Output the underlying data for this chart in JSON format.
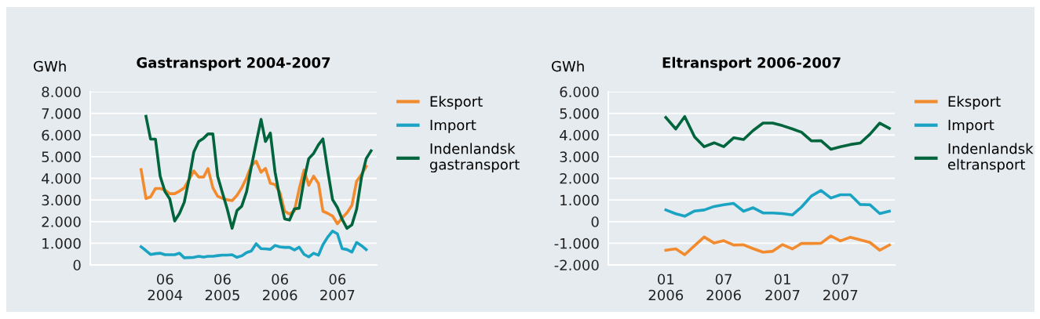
{
  "chart_data": [
    {
      "type": "line",
      "title": "Gastransport 2004-2007",
      "ylabel": "GWh",
      "series": [
        {
          "name": "Eksport",
          "color": "#f28a2e",
          "x": [
            "2004-01",
            "2004-02",
            "2004-03",
            "2004-04",
            "2004-05",
            "2004-06",
            "2004-07",
            "2004-08",
            "2004-09",
            "2004-10",
            "2004-11",
            "2004-12",
            "2005-01",
            "2005-02",
            "2005-03",
            "2005-04",
            "2005-05",
            "2005-06",
            "2005-07",
            "2005-08",
            "2005-09",
            "2005-10",
            "2005-11",
            "2005-12",
            "2006-01",
            "2006-02",
            "2006-03",
            "2006-04",
            "2006-05",
            "2006-06",
            "2006-07",
            "2006-08",
            "2006-09",
            "2006-10",
            "2006-11",
            "2006-12",
            "2007-01",
            "2007-02",
            "2007-03",
            "2007-04",
            "2007-05",
            "2007-06",
            "2007-07",
            "2007-08",
            "2007-09",
            "2007-10",
            "2007-11",
            "2007-12"
          ],
          "values": [
            4400,
            3070,
            3140,
            3530,
            3530,
            3460,
            3290,
            3290,
            3410,
            3560,
            3950,
            4340,
            4060,
            4060,
            4450,
            3560,
            3170,
            3070,
            3010,
            2970,
            3210,
            3560,
            4020,
            4580,
            4790,
            4280,
            4460,
            3770,
            3710,
            3340,
            2480,
            2350,
            2500,
            3500,
            4380,
            3680,
            4100,
            3760,
            2480,
            2380,
            2260,
            1900,
            2170,
            2410,
            2750,
            3860,
            4180,
            4550
          ]
        },
        {
          "name": "Import",
          "color": "#1aa3c2",
          "x": [
            "2004-01",
            "2004-02",
            "2004-03",
            "2004-04",
            "2004-05",
            "2004-06",
            "2004-07",
            "2004-08",
            "2004-09",
            "2004-10",
            "2004-11",
            "2004-12",
            "2005-01",
            "2005-02",
            "2005-03",
            "2005-04",
            "2005-05",
            "2005-06",
            "2005-07",
            "2005-08",
            "2005-09",
            "2005-10",
            "2005-11",
            "2005-12",
            "2006-01",
            "2006-02",
            "2006-03",
            "2006-04",
            "2006-05",
            "2006-06",
            "2006-07",
            "2006-08",
            "2006-09",
            "2006-10",
            "2006-11",
            "2006-12",
            "2007-01",
            "2007-02",
            "2007-03",
            "2007-04",
            "2007-05",
            "2007-06",
            "2007-07",
            "2007-08",
            "2007-09",
            "2007-10",
            "2007-11",
            "2007-12"
          ],
          "values": [
            840,
            660,
            480,
            520,
            540,
            470,
            470,
            470,
            540,
            330,
            340,
            350,
            400,
            360,
            400,
            400,
            430,
            450,
            450,
            470,
            350,
            420,
            570,
            640,
            980,
            750,
            740,
            720,
            900,
            830,
            810,
            810,
            690,
            820,
            490,
            370,
            540,
            450,
            930,
            1290,
            1560,
            1440,
            750,
            710,
            590,
            1040,
            890,
            710
          ]
        },
        {
          "name": "Indenlandsk\ngastransport",
          "color": "#00643c",
          "x": [
            "2004-02",
            "2004-03",
            "2004-04",
            "2004-05",
            "2004-06",
            "2004-07",
            "2004-08",
            "2004-09",
            "2004-10",
            "2004-11",
            "2004-12",
            "2005-01",
            "2005-02",
            "2005-03",
            "2005-04",
            "2005-05",
            "2005-06",
            "2005-07",
            "2005-08",
            "2005-09",
            "2005-10",
            "2005-11",
            "2005-12",
            "2006-01",
            "2006-02",
            "2006-03",
            "2006-04",
            "2006-05",
            "2006-06",
            "2006-07",
            "2006-08",
            "2006-09",
            "2006-10",
            "2006-11",
            "2006-12",
            "2007-01",
            "2007-02",
            "2007-03",
            "2007-04",
            "2007-05",
            "2007-06",
            "2007-07",
            "2007-08",
            "2007-09",
            "2007-10",
            "2007-11",
            "2007-12",
            "2008-01"
          ],
          "values": [
            6860,
            5810,
            5810,
            4100,
            3380,
            3050,
            2030,
            2380,
            2890,
            3980,
            5220,
            5700,
            5850,
            6050,
            6050,
            4100,
            3320,
            2590,
            1690,
            2510,
            2710,
            3380,
            4520,
            5630,
            6720,
            5700,
            6090,
            4280,
            3080,
            2130,
            2070,
            2590,
            2620,
            3920,
            4910,
            5150,
            5550,
            5820,
            4340,
            3020,
            2650,
            2110,
            1690,
            1850,
            2570,
            4040,
            4910,
            5270
          ]
        }
      ],
      "xlim": [
        "2003-02-12",
        "2008-02-06"
      ],
      "xticks": [
        {
          "value": "2004-06",
          "label": "06\n2004"
        },
        {
          "value": "2005-06",
          "label": "06\n2005"
        },
        {
          "value": "2006-06",
          "label": "06\n2006"
        },
        {
          "value": "2007-06",
          "label": "06\n2007"
        }
      ],
      "ylim": [
        0,
        8000
      ],
      "yticks": [
        {
          "value": 0,
          "label": "0"
        },
        {
          "value": 1000,
          "label": "1.000"
        },
        {
          "value": 2000,
          "label": "2.000"
        },
        {
          "value": 3000,
          "label": "3.000"
        },
        {
          "value": 4000,
          "label": "4.000"
        },
        {
          "value": 5000,
          "label": "5.000"
        },
        {
          "value": 6000,
          "label": "6.000"
        },
        {
          "value": 7000,
          "label": "7.000"
        },
        {
          "value": 8000,
          "label": "8.000"
        }
      ],
      "grid": "y",
      "legend": "right",
      "marker": "none",
      "line_style": "solid"
    },
    {
      "type": "line",
      "title": "Eltransport 2006-2007",
      "ylabel": "GWh",
      "series": [
        {
          "name": "Eksport",
          "color": "#f28a2e",
          "values": [
            -1320,
            -1260,
            -1530,
            -1110,
            -710,
            -990,
            -880,
            -1080,
            -1070,
            -1250,
            -1410,
            -1370,
            -1060,
            -1260,
            -1010,
            -1010,
            -1000,
            -660,
            -890,
            -720,
            -840,
            -960,
            -1320,
            -1080
          ]
        },
        {
          "name": "Import",
          "color": "#1aa3c2",
          "values": [
            540,
            360,
            250,
            490,
            540,
            700,
            780,
            840,
            480,
            640,
            400,
            400,
            370,
            310,
            670,
            1180,
            1440,
            1090,
            1240,
            1240,
            790,
            780,
            370,
            480
          ]
        },
        {
          "name": "Indenlandsk\neltransport",
          "color": "#00643c",
          "values": [
            4810,
            4280,
            4850,
            3910,
            3460,
            3640,
            3460,
            3870,
            3790,
            4210,
            4550,
            4550,
            4430,
            4280,
            4130,
            3730,
            3740,
            3340,
            3460,
            3560,
            3630,
            4030,
            4550,
            4310
          ]
        }
      ],
      "x": [
        "2006-01",
        "2006-02",
        "2006-03",
        "2006-04",
        "2006-05",
        "2006-06",
        "2006-07",
        "2006-08",
        "2006-09",
        "2006-10",
        "2006-11",
        "2006-12",
        "2007-01",
        "2007-02",
        "2007-03",
        "2007-04",
        "2007-05",
        "2007-06",
        "2007-07",
        "2007-08",
        "2007-09",
        "2007-10",
        "2007-11",
        "2007-12"
      ],
      "xlim": [
        "2005-07-05",
        "2007-12-18"
      ],
      "xticks": [
        {
          "value": "2006-01",
          "label": "01\n2006"
        },
        {
          "value": "2006-07",
          "label": "07\n2006"
        },
        {
          "value": "2007-01",
          "label": "01\n2007"
        },
        {
          "value": "2007-07",
          "label": "07\n2007"
        }
      ],
      "ylim": [
        -2000,
        6000
      ],
      "yticks": [
        {
          "value": -2000,
          "label": "-2.000"
        },
        {
          "value": -1000,
          "label": "-1.000"
        },
        {
          "value": 0,
          "label": "0"
        },
        {
          "value": 1000,
          "label": "1.000"
        },
        {
          "value": 2000,
          "label": "2.000"
        },
        {
          "value": 3000,
          "label": "3.000"
        },
        {
          "value": 4000,
          "label": "4.000"
        },
        {
          "value": 5000,
          "label": "5.000"
        },
        {
          "value": 6000,
          "label": "6.000"
        }
      ],
      "grid": "y",
      "legend": "right",
      "marker": "none",
      "line_style": "solid"
    }
  ]
}
